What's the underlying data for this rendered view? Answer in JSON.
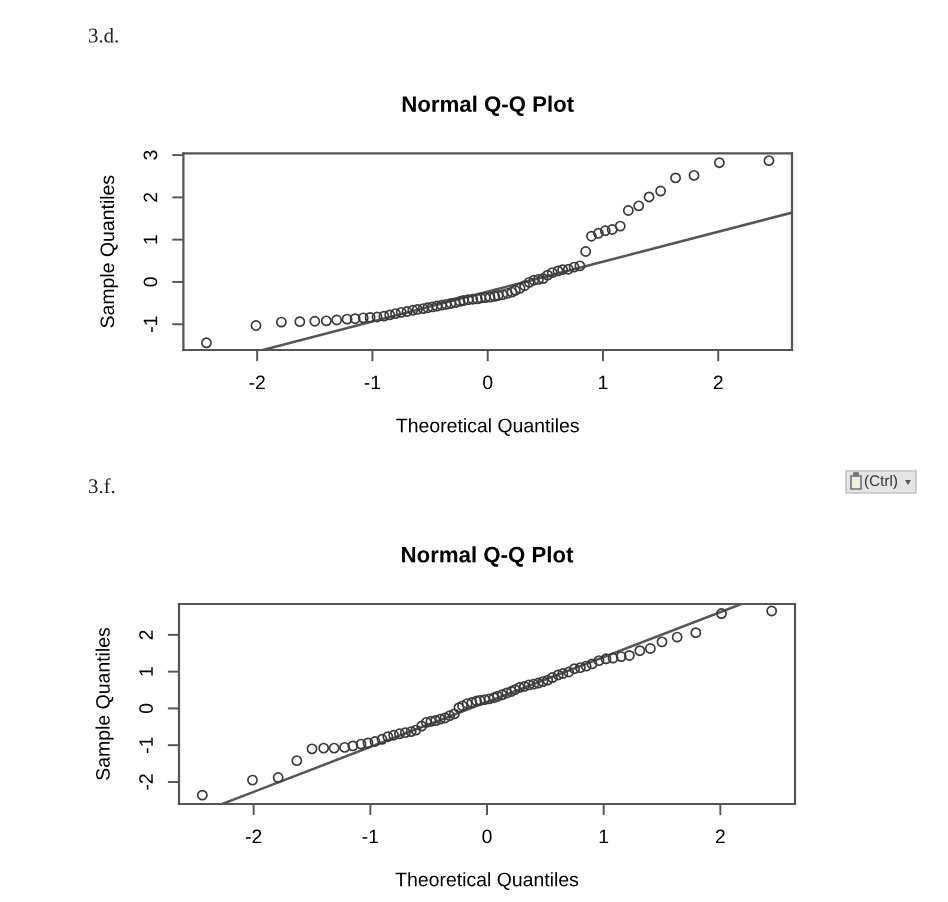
{
  "chart_data": [
    {
      "type": "scatter",
      "title": "Normal Q-Q Plot",
      "xlabel": "Theoretical Quantiles",
      "ylabel": "Sample Quantiles",
      "annotations": [
        "3.d."
      ],
      "xlim": [
        -2.64,
        2.64
      ],
      "ylim": [
        -1.61,
        3.04
      ],
      "xticks": [
        -2,
        -1,
        0,
        1,
        2
      ],
      "yticks": [
        -1,
        0,
        1,
        2,
        3
      ],
      "series": [
        {
          "color": "#3a3a3a",
          "marker": "circle",
          "x": [
            -2.44,
            -2.01,
            -1.79,
            -1.63,
            -1.5,
            -1.4,
            -1.31,
            -1.22,
            -1.15,
            -1.08,
            -1.02,
            -0.96,
            -0.9,
            -0.85,
            -0.8,
            -0.75,
            -0.7,
            -0.65,
            -0.61,
            -0.56,
            -0.52,
            -0.48,
            -0.44,
            -0.4,
            -0.36,
            -0.32,
            -0.28,
            -0.24,
            -0.21,
            -0.17,
            -0.13,
            -0.09,
            -0.06,
            -0.02,
            0.02,
            0.06,
            0.09,
            0.13,
            0.17,
            0.21,
            0.24,
            0.28,
            0.32,
            0.36,
            0.4,
            0.44,
            0.48,
            0.52,
            0.56,
            0.61,
            0.65,
            0.7,
            0.75,
            0.8,
            0.85,
            0.9,
            0.96,
            1.02,
            1.08,
            1.15,
            1.22,
            1.31,
            1.4,
            1.5,
            1.63,
            1.79,
            2.01,
            2.44
          ],
          "values": [
            -1.44,
            -1.03,
            -0.95,
            -0.94,
            -0.93,
            -0.92,
            -0.9,
            -0.88,
            -0.87,
            -0.85,
            -0.84,
            -0.83,
            -0.81,
            -0.78,
            -0.75,
            -0.72,
            -0.7,
            -0.67,
            -0.65,
            -0.63,
            -0.61,
            -0.59,
            -0.57,
            -0.55,
            -0.53,
            -0.51,
            -0.49,
            -0.46,
            -0.44,
            -0.42,
            -0.41,
            -0.4,
            -0.38,
            -0.37,
            -0.36,
            -0.34,
            -0.32,
            -0.3,
            -0.27,
            -0.24,
            -0.2,
            -0.15,
            -0.09,
            -0.01,
            0.04,
            0.06,
            0.08,
            0.16,
            0.22,
            0.26,
            0.29,
            0.3,
            0.35,
            0.38,
            0.72,
            1.08,
            1.15,
            1.21,
            1.24,
            1.32,
            1.69,
            1.8,
            2.01,
            2.15,
            2.46,
            2.52,
            2.82,
            2.87
          ]
        },
        {
          "type": "line",
          "color": "#555555",
          "x": [
            -1.95,
            2.64
          ],
          "values": [
            -1.61,
            1.64
          ]
        }
      ]
    },
    {
      "type": "scatter",
      "title": "Normal Q-Q Plot",
      "xlabel": "Theoretical Quantiles",
      "ylabel": "Sample Quantiles",
      "annotations": [
        "3.f.",
        "(Ctrl)"
      ],
      "xlim": [
        -2.64,
        2.64
      ],
      "ylim": [
        -2.6,
        2.84
      ],
      "xticks": [
        -2,
        -1,
        0,
        1,
        2
      ],
      "yticks": [
        -2,
        -1,
        0,
        1,
        2
      ],
      "series": [
        {
          "color": "#3a3a3a",
          "marker": "circle",
          "x": [
            -2.44,
            -2.01,
            -1.79,
            -1.63,
            -1.5,
            -1.4,
            -1.31,
            -1.22,
            -1.15,
            -1.08,
            -1.02,
            -0.96,
            -0.9,
            -0.85,
            -0.8,
            -0.75,
            -0.7,
            -0.65,
            -0.61,
            -0.56,
            -0.52,
            -0.48,
            -0.44,
            -0.4,
            -0.36,
            -0.32,
            -0.28,
            -0.24,
            -0.21,
            -0.17,
            -0.13,
            -0.09,
            -0.06,
            -0.02,
            0.02,
            0.06,
            0.09,
            0.13,
            0.17,
            0.21,
            0.24,
            0.28,
            0.32,
            0.36,
            0.4,
            0.44,
            0.48,
            0.52,
            0.56,
            0.61,
            0.65,
            0.7,
            0.75,
            0.8,
            0.85,
            0.9,
            0.96,
            1.02,
            1.08,
            1.15,
            1.22,
            1.31,
            1.4,
            1.5,
            1.63,
            1.79,
            2.01,
            2.44
          ],
          "values": [
            -2.36,
            -1.95,
            -1.88,
            -1.42,
            -1.1,
            -1.08,
            -1.08,
            -1.06,
            -1.02,
            -0.97,
            -0.94,
            -0.9,
            -0.84,
            -0.77,
            -0.73,
            -0.69,
            -0.66,
            -0.63,
            -0.59,
            -0.48,
            -0.38,
            -0.35,
            -0.33,
            -0.29,
            -0.26,
            -0.2,
            -0.15,
            0.02,
            0.07,
            0.13,
            0.16,
            0.2,
            0.22,
            0.24,
            0.26,
            0.29,
            0.33,
            0.37,
            0.42,
            0.46,
            0.51,
            0.57,
            0.6,
            0.64,
            0.66,
            0.69,
            0.73,
            0.77,
            0.84,
            0.91,
            0.95,
            0.99,
            1.08,
            1.11,
            1.15,
            1.21,
            1.3,
            1.35,
            1.37,
            1.41,
            1.44,
            1.57,
            1.63,
            1.81,
            1.94,
            2.06,
            2.58,
            2.65
          ]
        },
        {
          "type": "line",
          "color": "#555555",
          "x": [
            -2.27,
            2.18
          ],
          "values": [
            -2.6,
            2.84
          ]
        }
      ]
    }
  ]
}
